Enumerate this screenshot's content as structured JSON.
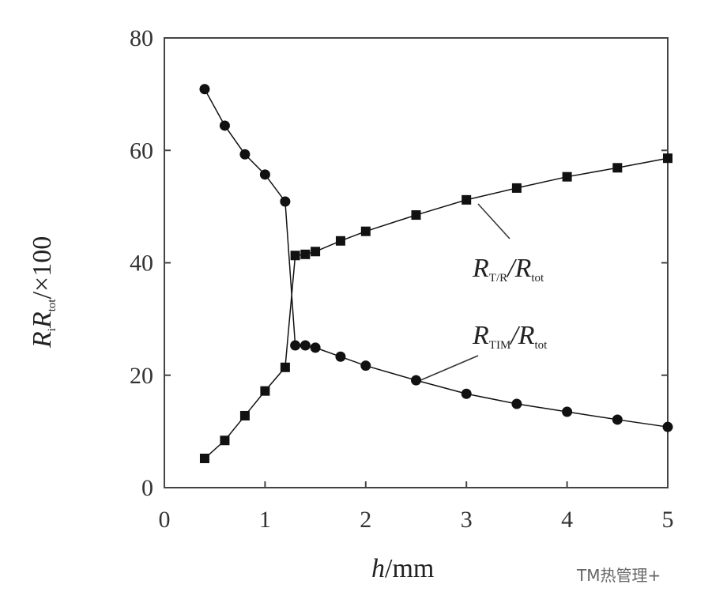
{
  "chart_data": {
    "type": "line",
    "x": [
      0.4,
      0.6,
      0.8,
      1.0,
      1.2,
      1.3,
      1.4,
      1.5,
      1.75,
      2.0,
      2.5,
      3.0,
      3.5,
      4.0,
      4.5,
      5.0
    ],
    "series": [
      {
        "color": "#111111",
        "marker": "circle",
        "values": [
          70.9,
          64.4,
          59.3,
          55.7,
          50.9,
          25.3,
          25.3,
          24.9,
          23.3,
          21.7,
          19.1,
          16.7,
          14.9,
          13.5,
          12.1,
          10.8
        ]
      },
      {
        "color": "#111111",
        "marker": "square",
        "values": [
          5.2,
          8.4,
          12.8,
          17.2,
          21.4,
          41.3,
          41.5,
          42.0,
          43.9,
          45.6,
          48.5,
          51.2,
          53.3,
          55.3,
          56.9,
          58.6
        ]
      }
    ],
    "xlim": [
      0,
      5
    ],
    "xticks": [
      0,
      1,
      2,
      3,
      4,
      5
    ],
    "ylim": [
      0,
      80
    ],
    "yticks": [
      0,
      20,
      40,
      60,
      80
    ],
    "xlabel": [
      "h",
      "/mm"
    ],
    "ylabel": [
      "R",
      "i",
      "R",
      "tot",
      "/×100"
    ],
    "annotations": [
      [
        "R",
        "T/R",
        "/R",
        "tot"
      ],
      [
        "R",
        "TIM",
        "/R",
        "tot"
      ]
    ],
    "watermark": "TM热管理+"
  }
}
